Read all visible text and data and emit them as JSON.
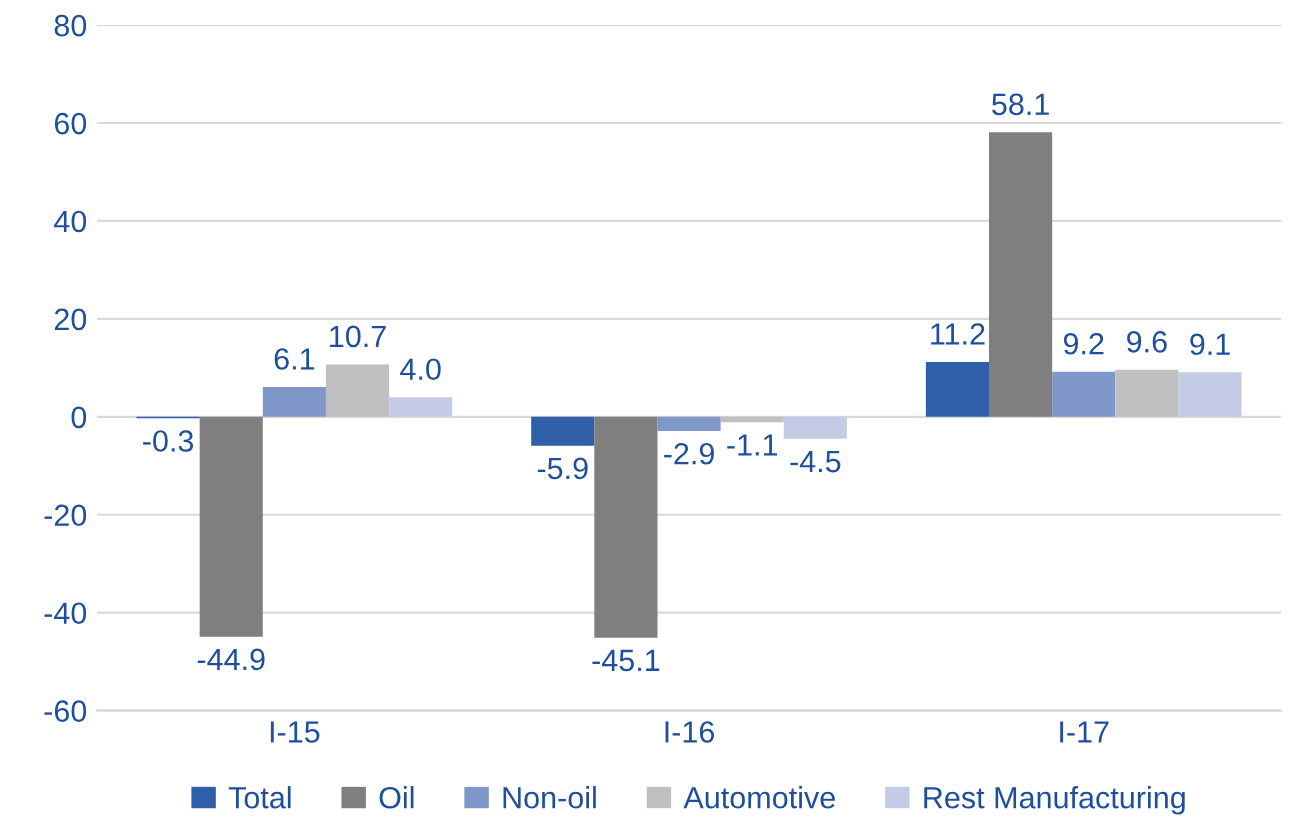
{
  "chart_data": {
    "type": "bar",
    "categories": [
      "I-15",
      "I-16",
      "I-17"
    ],
    "series": [
      {
        "name": "Total",
        "color": "#2e5fa8",
        "values": [
          -0.3,
          -5.9,
          11.2
        ],
        "value_labels": [
          "-0.3",
          "-5.9",
          "11.2"
        ]
      },
      {
        "name": "Oil",
        "color": "#7f7f7f",
        "values": [
          -44.9,
          -45.1,
          58.1
        ],
        "value_labels": [
          "-44.9",
          "-45.1",
          "58.1"
        ]
      },
      {
        "name": "Non-oil",
        "color": "#7f97c9",
        "values": [
          6.1,
          -2.9,
          9.2
        ],
        "value_labels": [
          "6.1",
          "-2.9",
          "9.2"
        ]
      },
      {
        "name": "Automotive",
        "color": "#bfbfbf",
        "values": [
          10.7,
          -1.1,
          9.6
        ],
        "value_labels": [
          "10.7",
          "-1.1",
          "9.6"
        ]
      },
      {
        "name": "Rest Manufacturing",
        "color": "#c4cbe6",
        "values": [
          4.0,
          -4.5,
          9.1
        ],
        "value_labels": [
          "4.0",
          "-4.5",
          "9.1"
        ]
      }
    ],
    "ylim": [
      -60,
      80
    ],
    "yticks": [
      -60,
      -40,
      -20,
      0,
      20,
      40,
      60,
      80
    ],
    "grid": "y",
    "legend": "bottom"
  }
}
